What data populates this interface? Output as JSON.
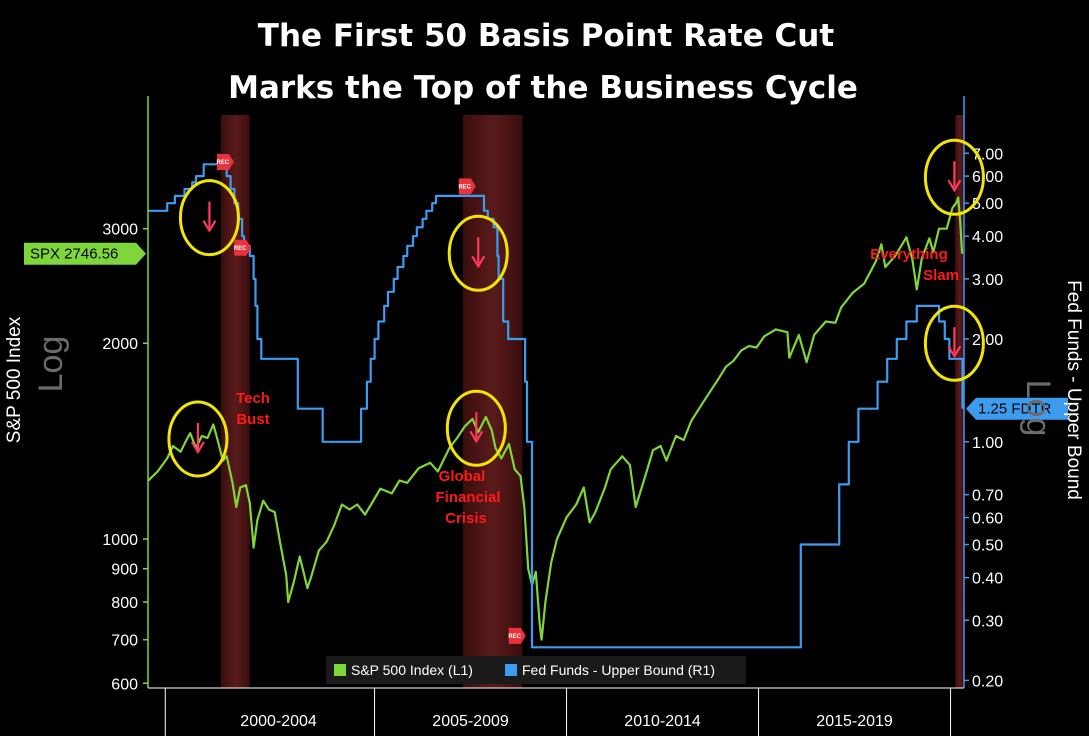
{
  "colors": {
    "background": "#000000",
    "spx": "#7fd63a",
    "fed": "#3d9cf0",
    "recession": "#5a1a1a",
    "circle": "#f2e600",
    "arrow": "#ff3a5a",
    "annotation": "#ff1a1a",
    "left_axis": "#7fd63a",
    "right_axis": "#3d9cf0"
  },
  "chart_data": {
    "type": "line",
    "title": [
      "The First 50 Basis Point Rate Cut",
      "Marks the Top of the Business Cycle"
    ],
    "x_range": [
      1998.95,
      2020.2
    ],
    "periods": [
      {
        "label": "2000-2004",
        "start": 2000,
        "end": 2005
      },
      {
        "label": "2005-2009",
        "start": 2005,
        "end": 2010
      },
      {
        "label": "2010-2014",
        "start": 2010,
        "end": 2015
      },
      {
        "label": "2015-2019",
        "start": 2015,
        "end": 2020
      }
    ],
    "left_axis": {
      "label": "S&P 500 Index",
      "scale": "log",
      "scale_label": "Log",
      "ylim": [
        590,
        4600
      ],
      "ticks": [
        600,
        700,
        800,
        900,
        1000,
        2000,
        3000
      ]
    },
    "right_axis": {
      "label": "Fed Funds - Upper Bound",
      "scale": "log",
      "scale_label": "Log",
      "ylim": [
        0.19,
        9.5
      ],
      "ticks": [
        "0.20",
        "0.30",
        "0.40",
        "0.50",
        "0.60",
        "0.70",
        "1.00",
        "2.00",
        "3.00",
        "4.00",
        "5.00",
        "6.00",
        "7.00"
      ]
    },
    "recessions": [
      [
        2000.85,
        2001.6
      ],
      [
        2007.15,
        2008.7
      ],
      [
        2019.97,
        2020.2
      ]
    ],
    "rec_markers": [
      {
        "x": 2000.9,
        "y": 6.6
      },
      {
        "x": 2001.35,
        "y": 3.7
      },
      {
        "x": 2007.2,
        "y": 5.6
      },
      {
        "x": 2008.5,
        "y": 0.27
      }
    ],
    "series": [
      {
        "name": "S&P 500 Index (L1)",
        "axis": "left",
        "tag": "SPX 2746.56",
        "points": [
          [
            1998.95,
            1229
          ],
          [
            1999.2,
            1270
          ],
          [
            1999.45,
            1330
          ],
          [
            1999.6,
            1390
          ],
          [
            1999.8,
            1362
          ],
          [
            1999.95,
            1420
          ],
          [
            2000.05,
            1455
          ],
          [
            2000.2,
            1380
          ],
          [
            2000.35,
            1440
          ],
          [
            2000.5,
            1430
          ],
          [
            2000.65,
            1500
          ],
          [
            2000.75,
            1430
          ],
          [
            2000.9,
            1320
          ],
          [
            2001.0,
            1340
          ],
          [
            2001.15,
            1220
          ],
          [
            2001.25,
            1120
          ],
          [
            2001.35,
            1200
          ],
          [
            2001.5,
            1210
          ],
          [
            2001.6,
            1135
          ],
          [
            2001.7,
            970
          ],
          [
            2001.8,
            1070
          ],
          [
            2001.95,
            1145
          ],
          [
            2002.1,
            1110
          ],
          [
            2002.25,
            1100
          ],
          [
            2002.4,
            980
          ],
          [
            2002.55,
            880
          ],
          [
            2002.6,
            800
          ],
          [
            2002.75,
            860
          ],
          [
            2002.9,
            940
          ],
          [
            2003.0,
            890
          ],
          [
            2003.1,
            840
          ],
          [
            2003.2,
            875
          ],
          [
            2003.4,
            960
          ],
          [
            2003.6,
            990
          ],
          [
            2003.8,
            1050
          ],
          [
            2004.0,
            1130
          ],
          [
            2004.2,
            1110
          ],
          [
            2004.4,
            1130
          ],
          [
            2004.6,
            1090
          ],
          [
            2004.8,
            1140
          ],
          [
            2005.0,
            1195
          ],
          [
            2005.3,
            1175
          ],
          [
            2005.5,
            1230
          ],
          [
            2005.7,
            1220
          ],
          [
            2006.0,
            1285
          ],
          [
            2006.3,
            1310
          ],
          [
            2006.5,
            1270
          ],
          [
            2006.8,
            1380
          ],
          [
            2007.0,
            1430
          ],
          [
            2007.2,
            1490
          ],
          [
            2007.4,
            1530
          ],
          [
            2007.55,
            1460
          ],
          [
            2007.75,
            1540
          ],
          [
            2007.9,
            1470
          ],
          [
            2008.0,
            1380
          ],
          [
            2008.15,
            1330
          ],
          [
            2008.35,
            1400
          ],
          [
            2008.5,
            1280
          ],
          [
            2008.65,
            1250
          ],
          [
            2008.75,
            1120
          ],
          [
            2008.85,
            900
          ],
          [
            2008.95,
            850
          ],
          [
            2009.05,
            890
          ],
          [
            2009.15,
            740
          ],
          [
            2009.2,
            700
          ],
          [
            2009.3,
            800
          ],
          [
            2009.45,
            920
          ],
          [
            2009.6,
            1000
          ],
          [
            2009.85,
            1080
          ],
          [
            2010.1,
            1130
          ],
          [
            2010.3,
            1200
          ],
          [
            2010.45,
            1060
          ],
          [
            2010.6,
            1100
          ],
          [
            2010.85,
            1200
          ],
          [
            2011.0,
            1280
          ],
          [
            2011.3,
            1340
          ],
          [
            2011.5,
            1300
          ],
          [
            2011.65,
            1120
          ],
          [
            2011.9,
            1250
          ],
          [
            2012.1,
            1370
          ],
          [
            2012.3,
            1390
          ],
          [
            2012.45,
            1320
          ],
          [
            2012.7,
            1440
          ],
          [
            2012.9,
            1420
          ],
          [
            2013.1,
            1520
          ],
          [
            2013.4,
            1620
          ],
          [
            2013.6,
            1690
          ],
          [
            2013.8,
            1760
          ],
          [
            2014.0,
            1840
          ],
          [
            2014.2,
            1880
          ],
          [
            2014.4,
            1950
          ],
          [
            2014.6,
            1980
          ],
          [
            2014.8,
            1970
          ],
          [
            2015.0,
            2050
          ],
          [
            2015.3,
            2100
          ],
          [
            2015.6,
            2080
          ],
          [
            2015.65,
            1900
          ],
          [
            2015.9,
            2060
          ],
          [
            2016.1,
            1870
          ],
          [
            2016.3,
            2060
          ],
          [
            2016.6,
            2160
          ],
          [
            2016.85,
            2150
          ],
          [
            2017.0,
            2270
          ],
          [
            2017.3,
            2390
          ],
          [
            2017.6,
            2470
          ],
          [
            2017.9,
            2670
          ],
          [
            2018.05,
            2840
          ],
          [
            2018.15,
            2620
          ],
          [
            2018.4,
            2720
          ],
          [
            2018.7,
            2910
          ],
          [
            2018.85,
            2700
          ],
          [
            2018.97,
            2420
          ],
          [
            2019.1,
            2700
          ],
          [
            2019.3,
            2900
          ],
          [
            2019.4,
            2760
          ],
          [
            2019.55,
            3000
          ],
          [
            2019.75,
            3000
          ],
          [
            2019.9,
            3230
          ],
          [
            2020.0,
            3290
          ],
          [
            2020.05,
            3350
          ],
          [
            2020.1,
            3080
          ],
          [
            2020.15,
            2746
          ]
        ]
      },
      {
        "name": "Fed Funds - Upper Bound (R1)",
        "axis": "right",
        "tag": "1.25 FDTR",
        "points": [
          [
            1998.95,
            4.75
          ],
          [
            1999.45,
            4.75
          ],
          [
            1999.45,
            5.0
          ],
          [
            1999.65,
            5.0
          ],
          [
            1999.65,
            5.25
          ],
          [
            1999.9,
            5.25
          ],
          [
            1999.9,
            5.5
          ],
          [
            2000.1,
            5.5
          ],
          [
            2000.1,
            5.75
          ],
          [
            2000.2,
            5.75
          ],
          [
            2000.2,
            6.0
          ],
          [
            2000.4,
            6.0
          ],
          [
            2000.4,
            6.5
          ],
          [
            2001.0,
            6.5
          ],
          [
            2001.0,
            6.0
          ],
          [
            2001.1,
            6.0
          ],
          [
            2001.1,
            5.5
          ],
          [
            2001.2,
            5.5
          ],
          [
            2001.2,
            5.0
          ],
          [
            2001.3,
            5.0
          ],
          [
            2001.3,
            4.5
          ],
          [
            2001.4,
            4.5
          ],
          [
            2001.4,
            4.0
          ],
          [
            2001.45,
            4.0
          ],
          [
            2001.45,
            3.75
          ],
          [
            2001.6,
            3.75
          ],
          [
            2001.6,
            3.5
          ],
          [
            2001.7,
            3.5
          ],
          [
            2001.7,
            3.0
          ],
          [
            2001.75,
            3.0
          ],
          [
            2001.75,
            2.5
          ],
          [
            2001.8,
            2.5
          ],
          [
            2001.8,
            2.0
          ],
          [
            2001.9,
            2.0
          ],
          [
            2001.9,
            1.75
          ],
          [
            2002.85,
            1.75
          ],
          [
            2002.85,
            1.25
          ],
          [
            2003.5,
            1.25
          ],
          [
            2003.5,
            1.0
          ],
          [
            2004.5,
            1.0
          ],
          [
            2004.5,
            1.25
          ],
          [
            2004.65,
            1.25
          ],
          [
            2004.65,
            1.5
          ],
          [
            2004.75,
            1.5
          ],
          [
            2004.75,
            1.75
          ],
          [
            2004.85,
            1.75
          ],
          [
            2004.85,
            2.0
          ],
          [
            2004.95,
            2.0
          ],
          [
            2004.95,
            2.25
          ],
          [
            2005.1,
            2.25
          ],
          [
            2005.1,
            2.5
          ],
          [
            2005.2,
            2.5
          ],
          [
            2005.2,
            2.75
          ],
          [
            2005.35,
            2.75
          ],
          [
            2005.35,
            3.0
          ],
          [
            2005.45,
            3.0
          ],
          [
            2005.45,
            3.25
          ],
          [
            2005.6,
            3.25
          ],
          [
            2005.6,
            3.5
          ],
          [
            2005.7,
            3.5
          ],
          [
            2005.7,
            3.75
          ],
          [
            2005.85,
            3.75
          ],
          [
            2005.85,
            4.0
          ],
          [
            2005.95,
            4.0
          ],
          [
            2005.95,
            4.25
          ],
          [
            2006.1,
            4.25
          ],
          [
            2006.1,
            4.5
          ],
          [
            2006.2,
            4.5
          ],
          [
            2006.2,
            4.75
          ],
          [
            2006.35,
            4.75
          ],
          [
            2006.35,
            5.0
          ],
          [
            2006.45,
            5.0
          ],
          [
            2006.45,
            5.25
          ],
          [
            2007.7,
            5.25
          ],
          [
            2007.7,
            4.75
          ],
          [
            2007.8,
            4.75
          ],
          [
            2007.8,
            4.5
          ],
          [
            2007.95,
            4.5
          ],
          [
            2007.95,
            4.25
          ],
          [
            2008.05,
            4.25
          ],
          [
            2008.05,
            3.5
          ],
          [
            2008.08,
            3.5
          ],
          [
            2008.08,
            3.0
          ],
          [
            2008.2,
            3.0
          ],
          [
            2008.2,
            2.25
          ],
          [
            2008.33,
            2.25
          ],
          [
            2008.33,
            2.0
          ],
          [
            2008.77,
            2.0
          ],
          [
            2008.77,
            1.5
          ],
          [
            2008.82,
            1.5
          ],
          [
            2008.82,
            1.0
          ],
          [
            2008.95,
            1.0
          ],
          [
            2008.95,
            0.25
          ],
          [
            2015.95,
            0.25
          ],
          [
            2015.95,
            0.5
          ],
          [
            2016.95,
            0.5
          ],
          [
            2016.95,
            0.75
          ],
          [
            2017.2,
            0.75
          ],
          [
            2017.2,
            1.0
          ],
          [
            2017.45,
            1.0
          ],
          [
            2017.45,
            1.25
          ],
          [
            2017.95,
            1.25
          ],
          [
            2017.95,
            1.5
          ],
          [
            2018.2,
            1.5
          ],
          [
            2018.2,
            1.75
          ],
          [
            2018.45,
            1.75
          ],
          [
            2018.45,
            2.0
          ],
          [
            2018.7,
            2.0
          ],
          [
            2018.7,
            2.25
          ],
          [
            2018.97,
            2.25
          ],
          [
            2018.97,
            2.5
          ],
          [
            2019.55,
            2.5
          ],
          [
            2019.55,
            2.25
          ],
          [
            2019.7,
            2.25
          ],
          [
            2019.7,
            2.0
          ],
          [
            2019.82,
            2.0
          ],
          [
            2019.82,
            1.75
          ],
          [
            2020.16,
            1.75
          ],
          [
            2020.16,
            1.25
          ]
        ]
      }
    ],
    "annotations": [
      {
        "id": "tech-bust",
        "lines": [
          "Tech",
          "Bust"
        ]
      },
      {
        "id": "gfc",
        "lines": [
          "Global",
          "Financial",
          "Crisis"
        ]
      },
      {
        "id": "everything-slam",
        "lines": [
          "Everything",
          "Slam"
        ]
      }
    ],
    "highlight_circles": [
      {
        "axis": "left",
        "x": 2000.55,
        "y": 3120,
        "arrow": true
      },
      {
        "axis": "left",
        "x": 2000.25,
        "y": 1425,
        "arrow": true
      },
      {
        "axis": "left",
        "x": 2007.55,
        "y": 2750,
        "arrow": true
      },
      {
        "axis": "left",
        "x": 2007.5,
        "y": 1480,
        "arrow": true
      },
      {
        "axis": "left",
        "x": 2019.95,
        "y": 3600,
        "arrow": true
      },
      {
        "axis": "left",
        "x": 2019.95,
        "y": 2000,
        "arrow": true
      }
    ],
    "legend": {
      "position": "bottom-center",
      "entries": [
        "S&P 500 Index (L1)",
        "Fed Funds - Upper Bound (R1)"
      ]
    },
    "grid": false
  }
}
